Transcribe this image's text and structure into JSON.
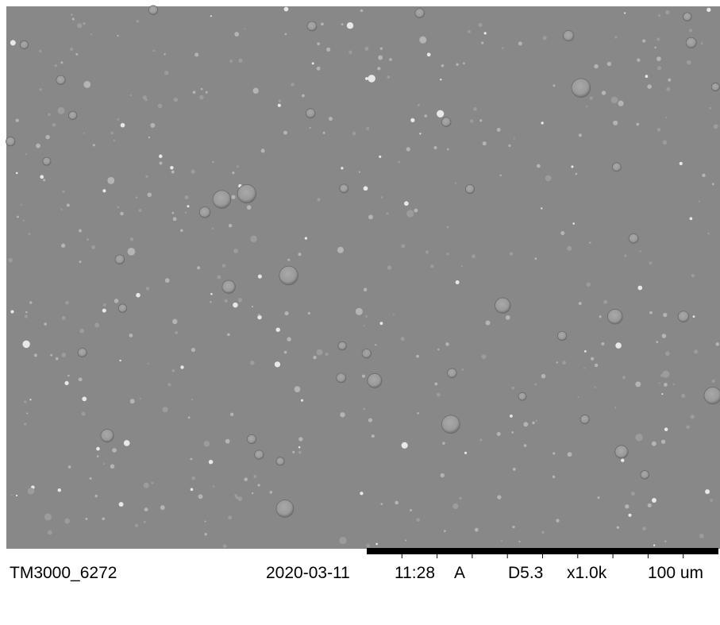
{
  "image_label": {
    "filename": "TM3000_6272",
    "date": "2020-03-11",
    "time": "11:28",
    "mode": "A",
    "working_distance": "D5.3",
    "magnification": "x1.0k",
    "scale": "100 um"
  }
}
